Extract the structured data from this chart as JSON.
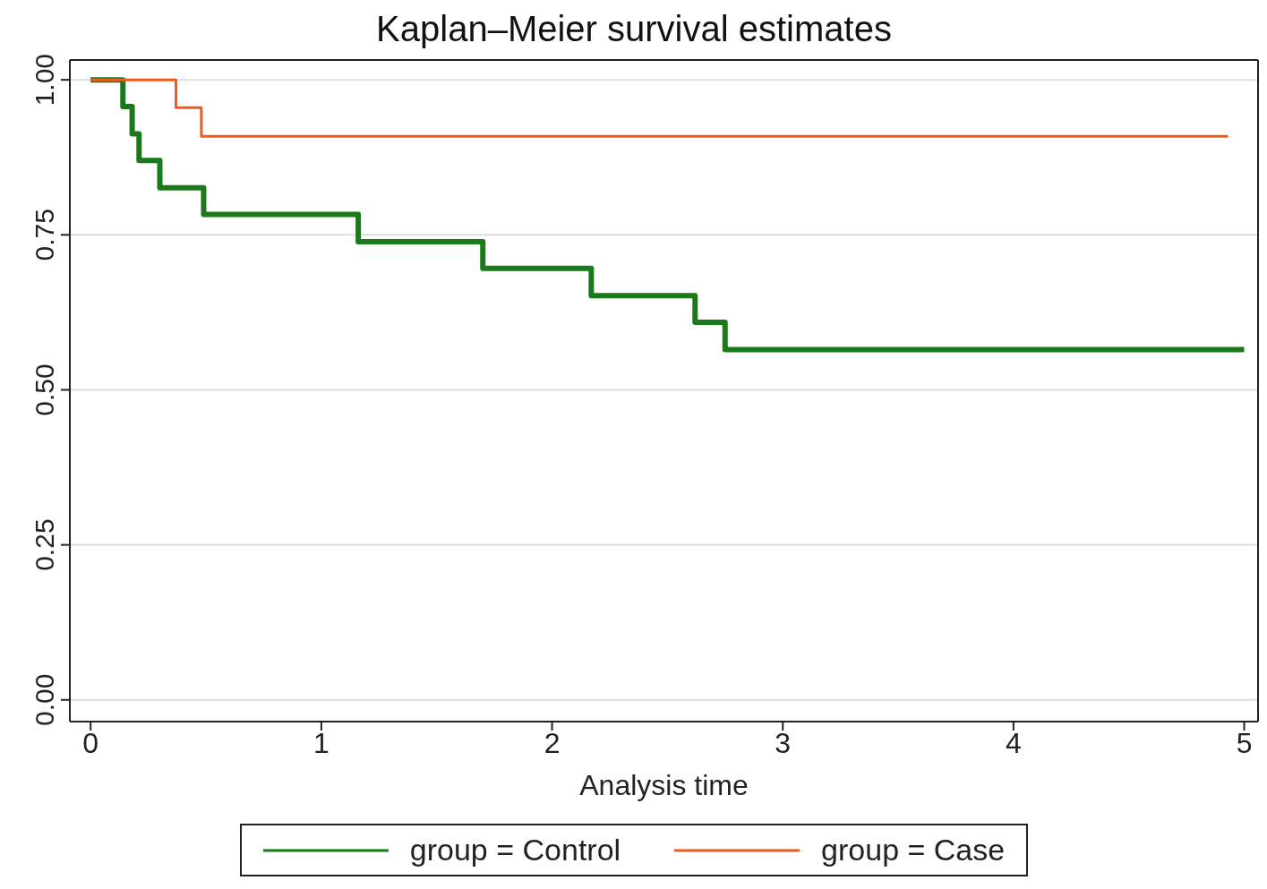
{
  "chart_data": {
    "type": "step",
    "title": "Kaplan–Meier survival estimates",
    "xlabel": "Analysis time",
    "series": [
      {
        "name": "group = Control",
        "color": "#1a7a1a",
        "x": [
          0,
          0.14,
          0.18,
          0.21,
          0.3,
          0.49,
          1.16,
          1.7,
          2.17,
          2.62,
          2.75,
          5.0
        ],
        "values": [
          1,
          0.957,
          0.913,
          0.87,
          0.826,
          0.783,
          0.739,
          0.696,
          0.652,
          0.609,
          0.565,
          0.565
        ]
      },
      {
        "name": "group = Case",
        "color": "#f05a1e",
        "x": [
          0,
          0.37,
          0.48,
          4.93
        ],
        "values": [
          1,
          0.955,
          0.909,
          0.909
        ]
      }
    ],
    "xlim": [
      -0.09,
      5.06
    ],
    "xticks": [
      0,
      1,
      2,
      3,
      4,
      5
    ],
    "ylim": [
      -0.035,
      1.032
    ],
    "yticks": [
      {
        "value": 0,
        "label": "0.00"
      },
      {
        "value": 0.25,
        "label": "0.25"
      },
      {
        "value": 0.5,
        "label": "0.50"
      },
      {
        "value": 0.75,
        "label": "0.75"
      },
      {
        "value": 1,
        "label": "1.00"
      }
    ],
    "grid": "y",
    "legend": "bottom",
    "line_style": "solid"
  }
}
